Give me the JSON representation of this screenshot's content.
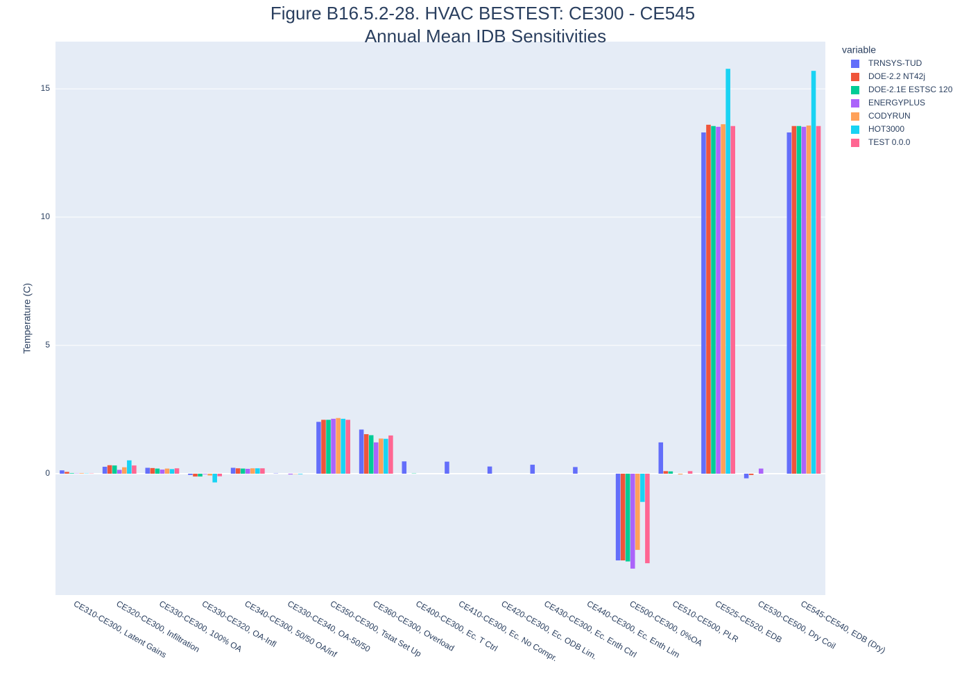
{
  "chart_data": {
    "type": "bar",
    "title": "Figure B16.5.2-28. HVAC BESTEST: CE300 - CE545",
    "subtitle": "Annual Mean IDB Sensitivities",
    "y_label": "Temperature (C)",
    "legend_title": "variable",
    "categories": [
      "CE310-CE300, Latent Gains",
      "CE320-CE300, Infiltration",
      "CE330-CE300, 100% OA",
      "CE330-CE320, OA-Infl",
      "CE340-CE300, 50/50 OA/inf",
      "CE330-CE340, OA-50/50",
      "CE350-CE300, Tstat Set Up",
      "CE360-CE300, Overload",
      "CE400-CE300, Ec. T Ctrl",
      "CE410-CE300, Ec. No Compr.",
      "CE420-CE300, Ec. ODB Lim.",
      "CE430-CE300, Ec. Enth Ctrl",
      "CE440-CE300, Ec. Enth Lim",
      "CE500-CE300, 0%OA",
      "CE510-CE500, PLR",
      "CE525-CE520, EDB",
      "CE530-CE500, Dry Coil",
      "CE545-CE540, EDB (Dry)"
    ],
    "series": [
      {
        "name": "TRNSYS-TUD",
        "color": "#636efa",
        "values": [
          0.13,
          0.27,
          0.23,
          -0.05,
          0.23,
          0.01,
          2.02,
          1.72,
          0.48,
          0.47,
          0.28,
          0.35,
          0.26,
          -3.38,
          1.22,
          13.3,
          -0.18,
          13.3
        ]
      },
      {
        "name": "DOE-2.2 NT42j",
        "color": "#EF553B",
        "values": [
          0.07,
          0.33,
          0.22,
          -0.11,
          0.21,
          0.0,
          2.1,
          1.54,
          0.0,
          0.0,
          0.0,
          0.0,
          0.0,
          -3.38,
          0.1,
          13.6,
          -0.05,
          13.55
        ]
      },
      {
        "name": "DOE-2.1E ESTSC 120",
        "color": "#00cc96",
        "values": [
          0.02,
          0.32,
          0.2,
          -0.11,
          0.2,
          0.0,
          2.1,
          1.5,
          0.01,
          0.0,
          0.0,
          0.0,
          0.0,
          -3.42,
          0.09,
          13.55,
          0.0,
          13.55
        ]
      },
      {
        "name": "ENERGYPLUS",
        "color": "#ab63fa",
        "values": [
          0.01,
          0.15,
          0.16,
          -0.02,
          0.19,
          -0.03,
          2.14,
          1.22,
          0.0,
          0.0,
          0.0,
          0.0,
          0.0,
          -3.7,
          0.0,
          13.52,
          0.2,
          13.52
        ]
      },
      {
        "name": "CODYRUN",
        "color": "#FFA15A",
        "values": [
          0.02,
          0.25,
          0.2,
          -0.07,
          0.21,
          -0.01,
          2.17,
          1.37,
          0.0,
          0.0,
          0.0,
          0.0,
          0.0,
          -2.97,
          -0.03,
          13.62,
          0.0,
          13.57
        ]
      },
      {
        "name": "HOT3000",
        "color": "#19d3f3",
        "values": [
          0.01,
          0.52,
          0.18,
          -0.34,
          0.21,
          -0.02,
          2.14,
          1.36,
          0.0,
          0.0,
          0.0,
          0.0,
          0.0,
          -1.1,
          0.0,
          15.78,
          0.0,
          15.7
        ]
      },
      {
        "name": "TEST 0.0.0",
        "color": "#FF6692",
        "values": [
          0.01,
          0.32,
          0.21,
          -0.1,
          0.21,
          0.0,
          2.1,
          1.49,
          0.0,
          0.0,
          0.0,
          0.0,
          0.0,
          -3.49,
          0.1,
          13.55,
          0.0,
          13.55
        ]
      }
    ],
    "ylim": [
      -4.73,
      16.84
    ],
    "yticks": [
      0,
      5,
      10,
      15
    ],
    "grid": true,
    "legend": "right"
  }
}
